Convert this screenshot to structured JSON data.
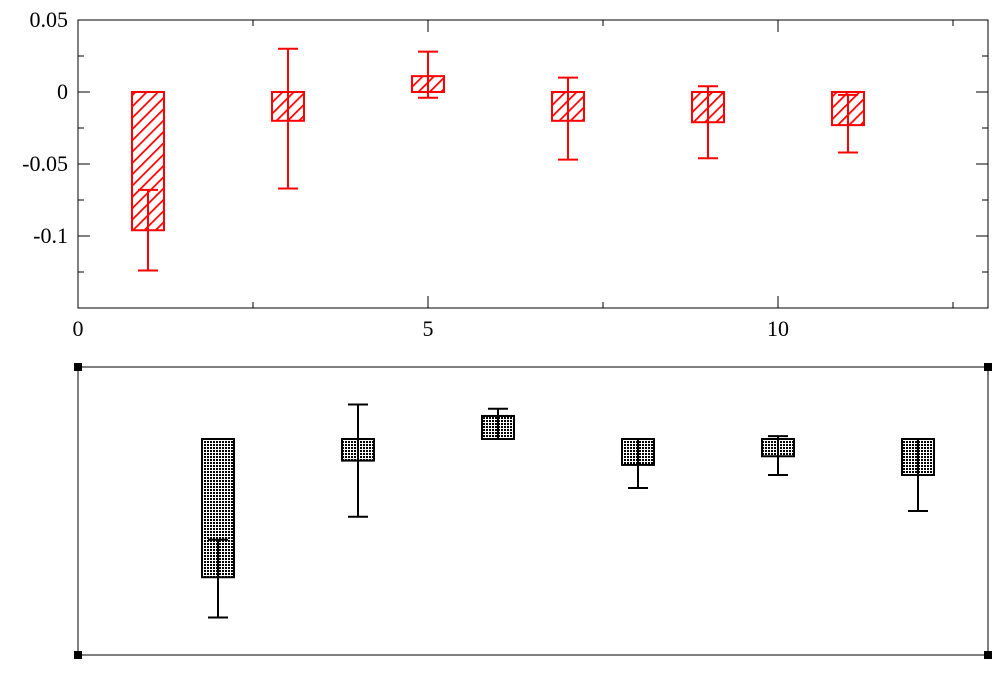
{
  "chart_data": [
    {
      "type": "bar",
      "title": "",
      "xlabel": "",
      "ylabel": "",
      "xlim": [
        0,
        13
      ],
      "ylim": [
        -0.15,
        0.05
      ],
      "x_ticks": [
        "0",
        "5",
        "10"
      ],
      "y_ticks": [
        "0.05",
        "0",
        "-0.05",
        "-0.1"
      ],
      "grid": false,
      "color": "#ff0000",
      "fill_pattern": "diagonal-hatch",
      "series": [
        {
          "x": [
            1,
            3,
            5,
            7,
            9,
            11
          ],
          "values": [
            -0.096,
            -0.02,
            0.011,
            -0.02,
            -0.021,
            -0.023
          ],
          "error_low": [
            -0.124,
            -0.067,
            -0.004,
            -0.047,
            -0.046,
            -0.042
          ],
          "error_high": [
            -0.068,
            0.03,
            0.028,
            0.01,
            0.004,
            -0.002
          ]
        }
      ]
    },
    {
      "type": "bar",
      "title": "",
      "xlabel": "",
      "ylabel": "",
      "xlim": [
        0,
        13
      ],
      "ylim": [
        -0.15,
        0.05
      ],
      "axes_visible": false,
      "grid": false,
      "selected": true,
      "color": "#000000",
      "fill_pattern": "dense-dots",
      "series": [
        {
          "x": [
            2,
            4,
            6,
            8,
            10,
            12
          ],
          "values": [
            -0.096,
            -0.015,
            0.016,
            -0.018,
            -0.012,
            -0.025
          ],
          "error_low": [
            -0.124,
            -0.054,
            0.0,
            -0.034,
            -0.025,
            -0.05
          ],
          "error_high": [
            -0.07,
            0.024,
            0.021,
            0.0,
            0.002,
            0.0
          ]
        }
      ]
    }
  ]
}
